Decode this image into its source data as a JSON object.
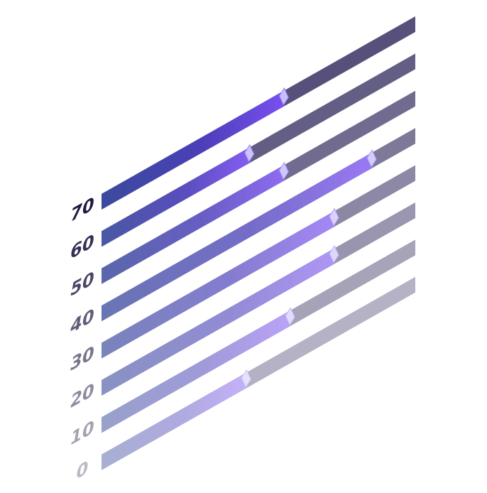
{
  "chart_data": {
    "type": "progress",
    "categories": [
      "0",
      "10",
      "20",
      "30",
      "40",
      "50",
      "60",
      "70"
    ],
    "values": [
      46,
      60,
      74,
      74,
      86,
      58,
      47,
      58
    ],
    "xlim": [
      0,
      100
    ],
    "track_color": "#56507a",
    "fill_color": "#7a4ff0"
  }
}
